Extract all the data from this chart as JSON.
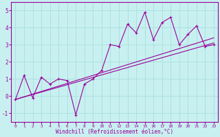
{
  "title": "",
  "xlabel": "Windchill (Refroidissement éolien,°C)",
  "ylabel": "",
  "bg_color": "#c8f0f0",
  "line_color": "#990099",
  "grid_color": "#aadddd",
  "xlim": [
    -0.5,
    23.5
  ],
  "ylim": [
    -1.5,
    5.5
  ],
  "xticks": [
    0,
    1,
    2,
    3,
    4,
    5,
    6,
    7,
    8,
    9,
    10,
    11,
    12,
    13,
    14,
    15,
    16,
    17,
    18,
    19,
    20,
    21,
    22,
    23
  ],
  "yticks": [
    -1,
    0,
    1,
    2,
    3,
    4,
    5
  ],
  "series1_x": [
    0,
    1,
    2,
    3,
    4,
    5,
    6,
    7,
    8,
    9,
    10,
    11,
    12,
    13,
    14,
    15,
    16,
    17,
    18,
    19,
    20,
    21,
    22,
    23
  ],
  "series1_y": [
    -0.2,
    1.2,
    -0.1,
    1.1,
    0.7,
    1.0,
    0.9,
    -1.1,
    0.7,
    1.0,
    1.5,
    3.0,
    2.9,
    4.2,
    3.7,
    4.9,
    3.3,
    4.3,
    4.6,
    3.0,
    3.6,
    4.1,
    2.9,
    3.0
  ]
}
